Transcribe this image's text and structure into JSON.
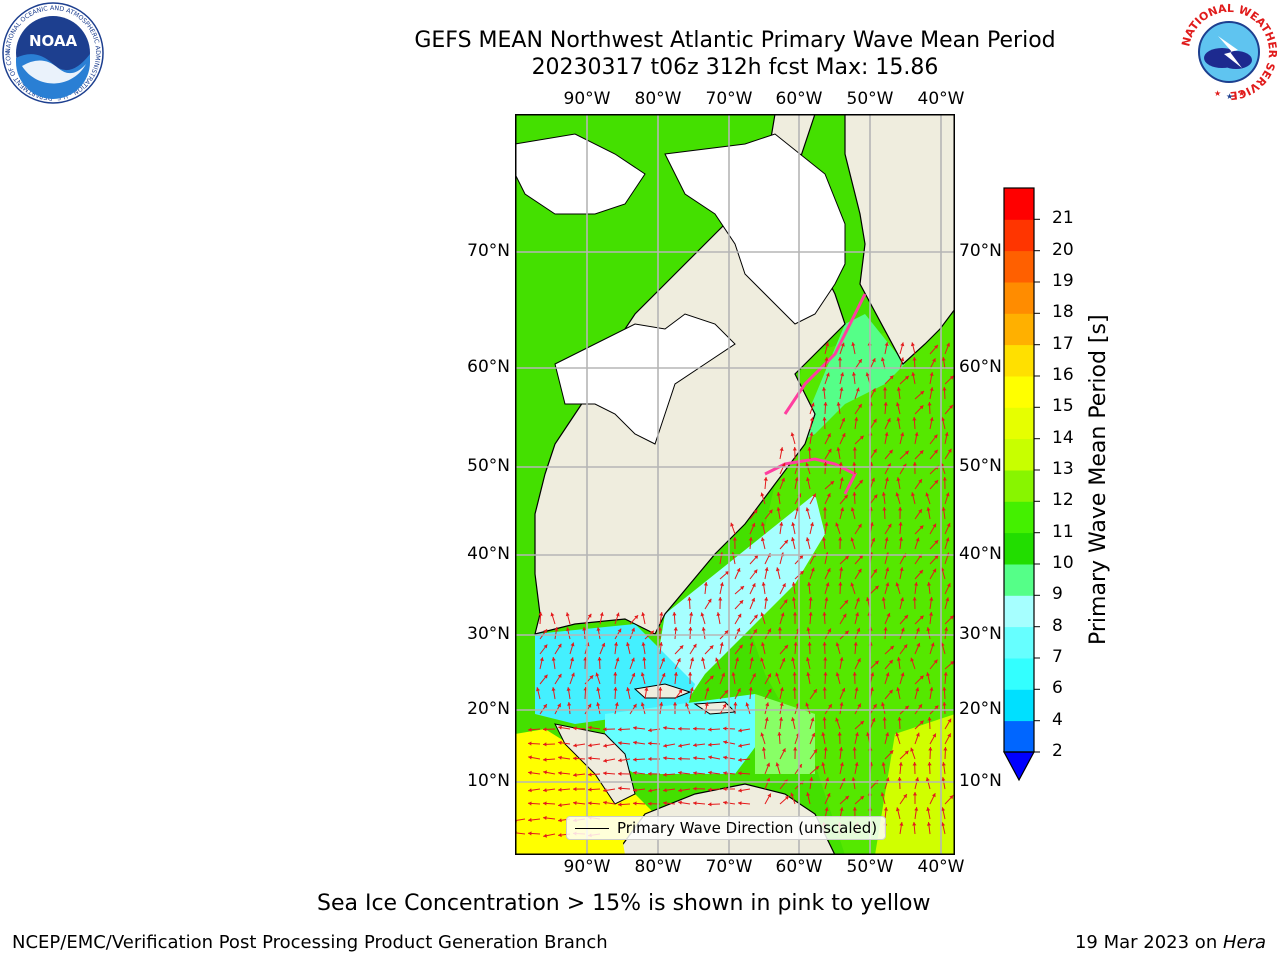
{
  "title": {
    "line1": "GEFS MEAN Northwest Atlantic Primary Wave Mean Period",
    "line2": "20230317 t06z 312h fcst   Max: 15.86"
  },
  "map": {
    "lon_labels": [
      "90°W",
      "80°W",
      "70°W",
      "60°W",
      "50°W",
      "40°W"
    ],
    "lat_labels_left": [
      "70°N",
      "60°N",
      "50°N",
      "40°N",
      "30°N",
      "20°N",
      "10°N"
    ],
    "lat_labels_right": [
      "70°N",
      "60°N",
      "50°N",
      "40°N",
      "30°N",
      "20°N",
      "10°N"
    ],
    "colors": {
      "land": "#efedde",
      "ice_land": "#ffffff",
      "grid": "#b5b5b5",
      "arrow": "#e41a1c"
    },
    "legend": "Primary Wave Direction (unscaled)"
  },
  "colorbar": {
    "title": "Primary Wave Mean Period [s]",
    "ticks": [
      "2",
      "4",
      "6",
      "7",
      "8",
      "9",
      "10",
      "11",
      "12",
      "13",
      "14",
      "15",
      "16",
      "17",
      "18",
      "19",
      "20",
      "21"
    ],
    "colors": [
      "#0066ff",
      "#00e0ff",
      "#33ffff",
      "#66ffff",
      "#a6ffff",
      "#55ff88",
      "#22dd00",
      "#44f000",
      "#88f500",
      "#c8ff00",
      "#e6ff00",
      "#ffff00",
      "#ffe000",
      "#ffb000",
      "#ff8c00",
      "#ff6000",
      "#ff3500",
      "#ff0000"
    ],
    "under_color": "#0000ff"
  },
  "note": "Sea Ice Concentration > 15% is shown in pink to yellow",
  "footer": {
    "left": "NCEP/EMC/Verification Post Processing Product Generation Branch",
    "right_prefix": "19 Mar 2023 on ",
    "right_host": "Hera"
  },
  "logos": {
    "noaa_text": "NOAA",
    "noaa_ring": "NATIONAL OCEANIC AND ATMOSPHERIC ADMINISTRATION · U.S. DEPARTMENT OF COMMERCE ·",
    "nws_ring": "NATIONAL WEATHER SERVICE"
  }
}
